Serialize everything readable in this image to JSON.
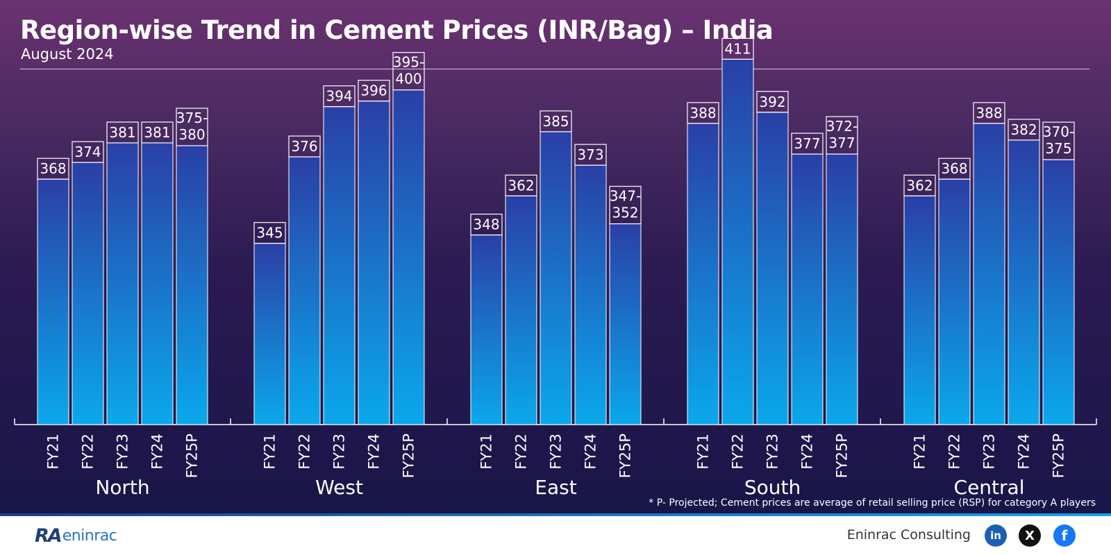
{
  "header": {
    "title": "Region-wise Trend in Cement Prices (INR/Bag) – India",
    "subtitle": "August 2024"
  },
  "footnote": "* P- Projected; Cement prices are average of retail selling price (RSP) for category A players",
  "footer": {
    "company": "Eninrac Consulting",
    "logo_mark": "RA",
    "logo_word": "eninrac",
    "icons": [
      "linkedin-icon",
      "x-icon",
      "facebook-icon"
    ]
  },
  "colors": {
    "bar_top": "#2a3fa6",
    "bar_bottom": "#0aa8ec",
    "bar_stroke": "#ffffff"
  },
  "chart_data": {
    "type": "bar",
    "title": "",
    "xlabel": "",
    "ylabel": "",
    "grid": false,
    "legend": "none",
    "groups": [
      {
        "region": "North",
        "bars": [
          {
            "label": "FY21",
            "value": 368,
            "text": "368"
          },
          {
            "label": "FY22",
            "value": 374,
            "text": "374"
          },
          {
            "label": "FY23",
            "value": 381,
            "text": "381"
          },
          {
            "label": "FY24",
            "value": 381,
            "text": "381"
          },
          {
            "label": "FY25P",
            "value": 380,
            "text": "375-\n380"
          }
        ]
      },
      {
        "region": "West",
        "bars": [
          {
            "label": "FY21",
            "value": 345,
            "text": "345"
          },
          {
            "label": "FY22",
            "value": 376,
            "text": "376"
          },
          {
            "label": "FY23",
            "value": 394,
            "text": "394"
          },
          {
            "label": "FY24",
            "value": 396,
            "text": "396"
          },
          {
            "label": "FY25P",
            "value": 400,
            "text": "395-\n400"
          }
        ]
      },
      {
        "region": "East",
        "bars": [
          {
            "label": "FY21",
            "value": 348,
            "text": "348"
          },
          {
            "label": "FY22",
            "value": 362,
            "text": "362"
          },
          {
            "label": "FY23",
            "value": 385,
            "text": "385"
          },
          {
            "label": "FY24",
            "value": 373,
            "text": "373"
          },
          {
            "label": "FY25P",
            "value": 352,
            "text": "347-\n352"
          }
        ]
      },
      {
        "region": "South",
        "bars": [
          {
            "label": "FY21",
            "value": 388,
            "text": "388"
          },
          {
            "label": "FY22",
            "value": 411,
            "text": "411"
          },
          {
            "label": "FY23",
            "value": 392,
            "text": "392"
          },
          {
            "label": "FY24",
            "value": 377,
            "text": "377"
          },
          {
            "label": "FY25P",
            "value": 377,
            "text": "372-\n377"
          }
        ]
      },
      {
        "region": "Central",
        "bars": [
          {
            "label": "FY21",
            "value": 362,
            "text": "362"
          },
          {
            "label": "FY22",
            "value": 368,
            "text": "368"
          },
          {
            "label": "FY23",
            "value": 388,
            "text": "388"
          },
          {
            "label": "FY24",
            "value": 382,
            "text": "382"
          },
          {
            "label": "FY25P",
            "value": 375,
            "text": "370-\n375"
          }
        ]
      }
    ]
  }
}
